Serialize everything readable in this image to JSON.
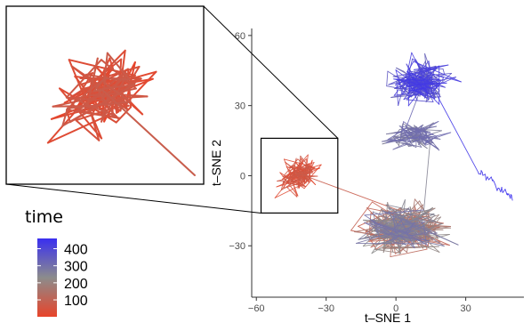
{
  "chart_data": {
    "type": "line",
    "title": "",
    "xlabel": "t–SNE 1",
    "ylabel": "t–SNE 2",
    "xlim": [
      -62,
      55
    ],
    "ylim": [
      -52,
      63
    ],
    "x_ticks": [
      -60,
      -30,
      0,
      30
    ],
    "y_ticks": [
      -30,
      0,
      30,
      60
    ],
    "x_tick_labels": [
      "−60",
      "−30",
      "0",
      "30"
    ],
    "y_tick_labels": [
      "−30",
      "0",
      "30",
      "60"
    ],
    "grid": false,
    "color_encoding": "time",
    "time_range": [
      1,
      460
    ],
    "inset_region": {
      "x": [
        -58,
        -25
      ],
      "y": [
        -16,
        16
      ]
    },
    "clusters": [
      {
        "time": [
          1,
          80
        ],
        "center": [
          -42,
          0
        ],
        "spread": [
          12,
          11
        ]
      },
      {
        "time": [
          80,
          300
        ],
        "center": [
          3,
          -23
        ],
        "spread": [
          26,
          15
        ]
      },
      {
        "time": [
          250,
          320
        ],
        "center": [
          8,
          17
        ],
        "spread": [
          18,
          8
        ]
      },
      {
        "time": [
          320,
          440
        ],
        "center": [
          10,
          40
        ],
        "spread": [
          20,
          14
        ]
      },
      {
        "time": [
          440,
          460
        ],
        "center": [
          43,
          2
        ],
        "spread": [
          6,
          8
        ]
      }
    ],
    "colors": {
      "low": "#e8442a",
      "mid": "#8c8c8c",
      "high": "#3a2ff0"
    }
  },
  "legend": {
    "title": "time",
    "labels": [
      "400",
      "300",
      "200",
      "100"
    ],
    "values": [
      400,
      300,
      200,
      100
    ]
  }
}
